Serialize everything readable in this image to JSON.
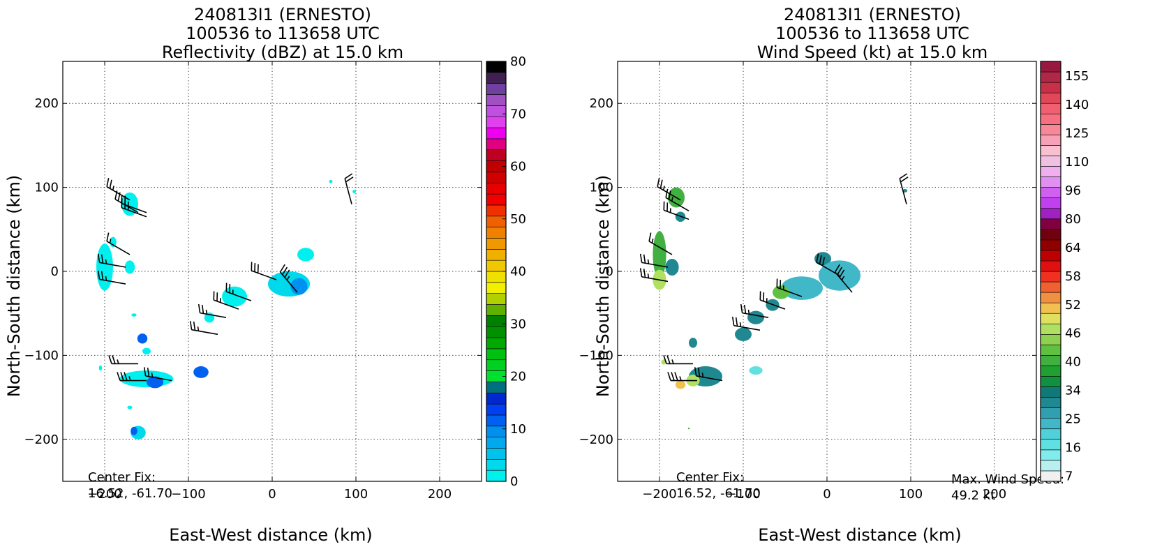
{
  "chart_data": [
    {
      "type": "heatmap",
      "title_lines": [
        "240813I1 (ERNESTO)",
        "100536 to 113658 UTC",
        "Reflectivity (dBZ) at 15.0 km"
      ],
      "xlabel": "East-West distance (km)",
      "ylabel": "North-South distance (km)",
      "xlim": [
        -250,
        250
      ],
      "ylim": [
        -250,
        250
      ],
      "xticks": [
        -200,
        -100,
        0,
        100,
        200
      ],
      "yticks": [
        -200,
        -100,
        0,
        100,
        200
      ],
      "xtick_labels": [
        "−200",
        "−100",
        "0",
        "100",
        "200"
      ],
      "ytick_labels": [
        "−200",
        "−100",
        "0",
        "100",
        "200"
      ],
      "grid": true,
      "annotations": [
        {
          "position": "bottom-left",
          "lines": [
            "Center Fix:",
            "16.52, -61.70"
          ]
        }
      ],
      "colorbar": {
        "range": [
          0,
          80
        ],
        "ticks": [
          0,
          10,
          20,
          30,
          40,
          50,
          60,
          70,
          80
        ],
        "colors": [
          "#00f0f0",
          "#00d8ec",
          "#00c2ec",
          "#00a8ee",
          "#0090f0",
          "#0060f0",
          "#0040f0",
          "#0028d0",
          "#007080",
          "#00e030",
          "#00d020",
          "#00c010",
          "#00a800",
          "#009000",
          "#008000",
          "#60b000",
          "#b0d000",
          "#f0f000",
          "#f0e000",
          "#f0c800",
          "#f0b000",
          "#f09800",
          "#f08000",
          "#f06000",
          "#f03000",
          "#f00000",
          "#e80000",
          "#d00000",
          "#c00000",
          "#c00020",
          "#e00080",
          "#f000f0",
          "#e040f0",
          "#c050e0",
          "#a050c0",
          "#7040a0",
          "#402050",
          "#000000"
        ]
      },
      "echo_regions": [
        {
          "x": -170,
          "y": 80,
          "rx": 10,
          "ry": 14,
          "dbz": 2
        },
        {
          "x": -200,
          "y": 5,
          "rx": 10,
          "ry": 28,
          "dbz": 2
        },
        {
          "x": -170,
          "y": 5,
          "rx": 6,
          "ry": 8,
          "dbz": 2
        },
        {
          "x": -190,
          "y": 35,
          "rx": 4,
          "ry": 6,
          "dbz": 2
        },
        {
          "x": 40,
          "y": 20,
          "rx": 10,
          "ry": 8,
          "dbz": 2
        },
        {
          "x": 20,
          "y": -15,
          "rx": 25,
          "ry": 15,
          "dbz": 4
        },
        {
          "x": 32,
          "y": -18,
          "rx": 10,
          "ry": 10,
          "dbz": 10
        },
        {
          "x": -45,
          "y": -30,
          "rx": 15,
          "ry": 12,
          "dbz": 2
        },
        {
          "x": -75,
          "y": -55,
          "rx": 6,
          "ry": 6,
          "dbz": 2
        },
        {
          "x": -155,
          "y": -80,
          "rx": 6,
          "ry": 6,
          "dbz": 12
        },
        {
          "x": -150,
          "y": -95,
          "rx": 5,
          "ry": 4,
          "dbz": 2
        },
        {
          "x": -150,
          "y": -128,
          "rx": 32,
          "ry": 10,
          "dbz": 2
        },
        {
          "x": -140,
          "y": -132,
          "rx": 10,
          "ry": 7,
          "dbz": 11
        },
        {
          "x": -85,
          "y": -120,
          "rx": 9,
          "ry": 7,
          "dbz": 11
        },
        {
          "x": -160,
          "y": -192,
          "rx": 9,
          "ry": 8,
          "dbz": 3
        },
        {
          "x": -165,
          "y": -190,
          "rx": 4,
          "ry": 5,
          "dbz": 11
        },
        {
          "x": 98,
          "y": 95,
          "rx": 2,
          "ry": 2,
          "dbz": 2
        },
        {
          "x": 70,
          "y": 107,
          "rx": 2,
          "ry": 2,
          "dbz": 2
        },
        {
          "x": -205,
          "y": -115,
          "rx": 2,
          "ry": 3,
          "dbz": 2
        },
        {
          "x": -165,
          "y": -52,
          "rx": 3,
          "ry": 2,
          "dbz": 2
        },
        {
          "x": -170,
          "y": -162,
          "rx": 3,
          "ry": 2,
          "dbz": 2
        }
      ],
      "wind_barbs": [
        {
          "x": -170,
          "y": 85,
          "dir": 300,
          "kt": 25
        },
        {
          "x": -160,
          "y": 70,
          "dir": 300,
          "kt": 25
        },
        {
          "x": -150,
          "y": 70,
          "dir": 290,
          "kt": 25
        },
        {
          "x": -150,
          "y": 65,
          "dir": 290,
          "kt": 25
        },
        {
          "x": -170,
          "y": 20,
          "dir": 300,
          "kt": 15
        },
        {
          "x": -175,
          "y": 5,
          "dir": 280,
          "kt": 25
        },
        {
          "x": -175,
          "y": -15,
          "dir": 280,
          "kt": 25
        },
        {
          "x": 5,
          "y": -10,
          "dir": 290,
          "kt": 30
        },
        {
          "x": 30,
          "y": -25,
          "dir": 320,
          "kt": 35
        },
        {
          "x": -25,
          "y": -35,
          "dir": 290,
          "kt": 25
        },
        {
          "x": -40,
          "y": -45,
          "dir": 290,
          "kt": 25
        },
        {
          "x": -55,
          "y": -55,
          "dir": 280,
          "kt": 25
        },
        {
          "x": -65,
          "y": -75,
          "dir": 280,
          "kt": 25
        },
        {
          "x": -160,
          "y": -110,
          "dir": 270,
          "kt": 25
        },
        {
          "x": -150,
          "y": -130,
          "dir": 270,
          "kt": 35
        },
        {
          "x": -120,
          "y": -130,
          "dir": 280,
          "kt": 25
        },
        {
          "x": 95,
          "y": 80,
          "dir": 345,
          "kt": 20
        }
      ]
    },
    {
      "type": "heatmap",
      "title_lines": [
        "240813I1 (ERNESTO)",
        "100536 to 113658 UTC",
        "Wind Speed (kt) at 15.0 km"
      ],
      "xlabel": "East-West distance (km)",
      "ylabel": "North-South distance (km)",
      "xlim": [
        -250,
        250
      ],
      "ylim": [
        -250,
        250
      ],
      "xticks": [
        -200,
        -100,
        0,
        100,
        200
      ],
      "yticks": [
        -200,
        -100,
        0,
        100,
        200
      ],
      "xtick_labels": [
        "−200",
        "−100",
        "0",
        "100",
        "200"
      ],
      "ytick_labels": [
        "−200",
        "−100",
        "0",
        "100",
        "200"
      ],
      "grid": true,
      "annotations": [
        {
          "position": "bottom-left",
          "lines": [
            "Center Fix:",
            "16.52, -61.70"
          ]
        },
        {
          "position": "bottom-right",
          "lines": [
            "Max. Wind Speed:",
            "49.2 kt"
          ]
        }
      ],
      "colorbar": {
        "tick_labels": [
          "7",
          "16",
          "25",
          "34",
          "40",
          "46",
          "52",
          "58",
          "64",
          "80",
          "96",
          "110",
          "125",
          "140",
          "155"
        ],
        "colors": [
          "#f0f0f0",
          "#b8f0f0",
          "#80ecec",
          "#60e0e0",
          "#50d0d8",
          "#40b8c8",
          "#30a0b0",
          "#208890",
          "#107878",
          "#109040",
          "#20a030",
          "#40b040",
          "#60c040",
          "#90d050",
          "#b0e060",
          "#e0e060",
          "#f0c050",
          "#f09040",
          "#f06030",
          "#f03020",
          "#e01010",
          "#c00000",
          "#900000",
          "#700010",
          "#800040",
          "#a020c0",
          "#c040f0",
          "#d060f0",
          "#e090f0",
          "#f0b0f0",
          "#f0c0e0",
          "#f8c0d0",
          "#f8a0b8",
          "#f88898",
          "#f87080",
          "#f06070",
          "#e04858",
          "#c83048",
          "#b02848",
          "#981840"
        ]
      },
      "max_wind_kt": 49.2,
      "speed_regions": [
        {
          "x": -180,
          "y": 88,
          "rx": 10,
          "ry": 12,
          "color": "#40b040"
        },
        {
          "x": -175,
          "y": 65,
          "rx": 6,
          "ry": 6,
          "color": "#208890"
        },
        {
          "x": -200,
          "y": 20,
          "rx": 8,
          "ry": 28,
          "color": "#40b040"
        },
        {
          "x": -200,
          "y": -10,
          "rx": 8,
          "ry": 12,
          "color": "#b0e060"
        },
        {
          "x": -185,
          "y": 5,
          "rx": 8,
          "ry": 10,
          "color": "#208890"
        },
        {
          "x": -5,
          "y": 15,
          "rx": 10,
          "ry": 8,
          "color": "#208890"
        },
        {
          "x": 15,
          "y": -5,
          "rx": 25,
          "ry": 18,
          "color": "#40b8c8"
        },
        {
          "x": -30,
          "y": -20,
          "rx": 25,
          "ry": 14,
          "color": "#40b8c8"
        },
        {
          "x": -55,
          "y": -25,
          "rx": 10,
          "ry": 8,
          "color": "#60c040"
        },
        {
          "x": -65,
          "y": -40,
          "rx": 8,
          "ry": 7,
          "color": "#208890"
        },
        {
          "x": -85,
          "y": -55,
          "rx": 10,
          "ry": 8,
          "color": "#208890"
        },
        {
          "x": -100,
          "y": -75,
          "rx": 10,
          "ry": 8,
          "color": "#208890"
        },
        {
          "x": -160,
          "y": -85,
          "rx": 5,
          "ry": 6,
          "color": "#208890"
        },
        {
          "x": -145,
          "y": -125,
          "rx": 20,
          "ry": 12,
          "color": "#208890"
        },
        {
          "x": -160,
          "y": -130,
          "rx": 8,
          "ry": 7,
          "color": "#b0e060"
        },
        {
          "x": -175,
          "y": -135,
          "rx": 6,
          "ry": 5,
          "color": "#f0c050"
        },
        {
          "x": -195,
          "y": -108,
          "rx": 3,
          "ry": 3,
          "color": "#b0e060"
        },
        {
          "x": -85,
          "y": -118,
          "rx": 8,
          "ry": 5,
          "color": "#60e0e0"
        },
        {
          "x": 93,
          "y": 96,
          "rx": 3,
          "ry": 2,
          "color": "#208890"
        },
        {
          "x": -165,
          "y": -187,
          "rx": 1,
          "ry": 1,
          "color": "#40b040"
        }
      ],
      "wind_barbs": [
        {
          "x": -175,
          "y": 85,
          "dir": 300,
          "kt": 25
        },
        {
          "x": -165,
          "y": 72,
          "dir": 300,
          "kt": 25
        },
        {
          "x": -165,
          "y": 62,
          "dir": 290,
          "kt": 25
        },
        {
          "x": -185,
          "y": 20,
          "dir": 300,
          "kt": 15
        },
        {
          "x": -190,
          "y": 5,
          "dir": 280,
          "kt": 25
        },
        {
          "x": -190,
          "y": -12,
          "dir": 280,
          "kt": 25
        },
        {
          "x": 15,
          "y": -5,
          "dir": 300,
          "kt": 30
        },
        {
          "x": 30,
          "y": -25,
          "dir": 320,
          "kt": 35
        },
        {
          "x": -30,
          "y": -30,
          "dir": 290,
          "kt": 25
        },
        {
          "x": -50,
          "y": -45,
          "dir": 290,
          "kt": 25
        },
        {
          "x": -70,
          "y": -55,
          "dir": 280,
          "kt": 25
        },
        {
          "x": -80,
          "y": -70,
          "dir": 280,
          "kt": 25
        },
        {
          "x": -160,
          "y": -110,
          "dir": 270,
          "kt": 25
        },
        {
          "x": -155,
          "y": -130,
          "dir": 270,
          "kt": 35
        },
        {
          "x": -125,
          "y": -130,
          "dir": 280,
          "kt": 25
        },
        {
          "x": 95,
          "y": 80,
          "dir": 345,
          "kt": 20
        }
      ]
    }
  ]
}
